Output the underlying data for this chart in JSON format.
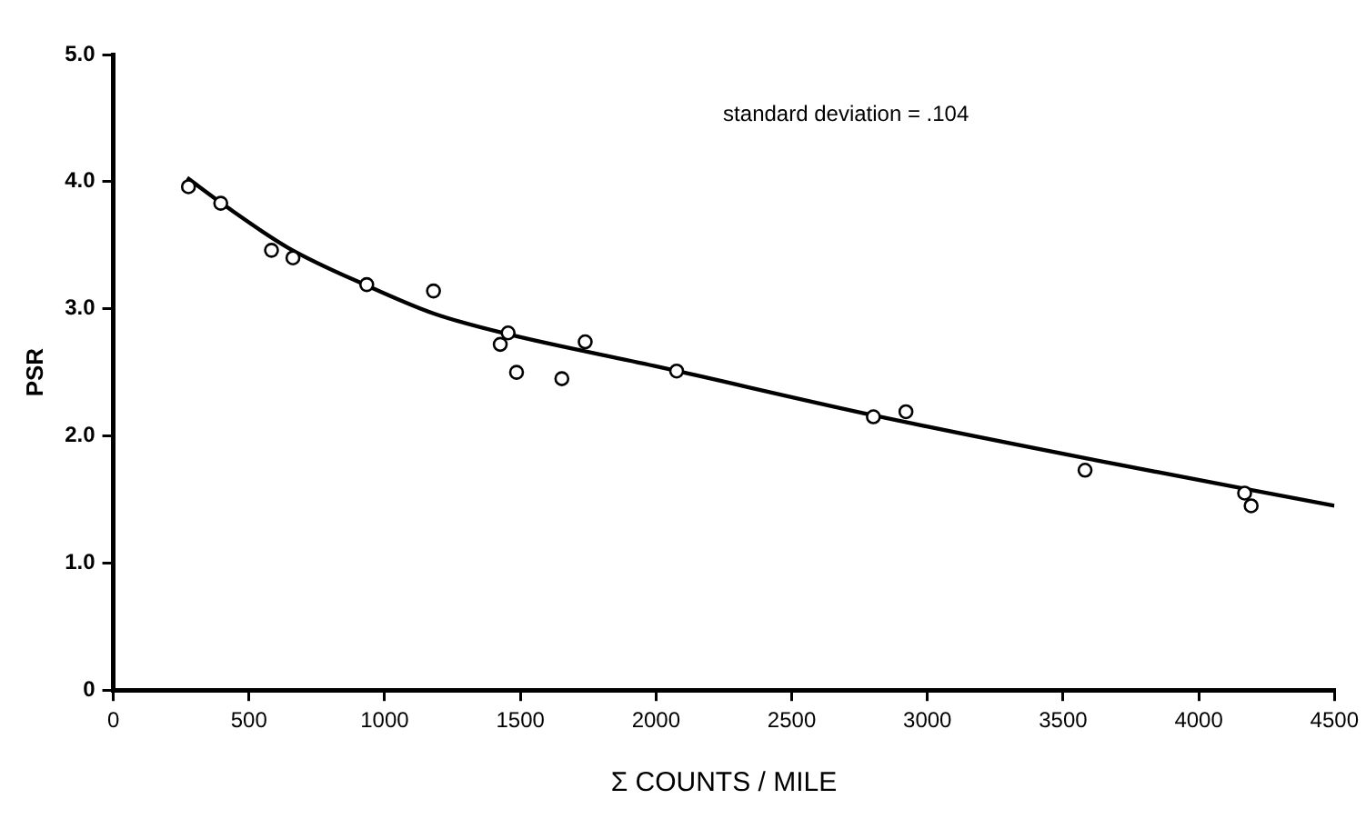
{
  "chart_data": {
    "type": "scatter",
    "xlabel": "Σ COUNTS / MILE",
    "ylabel": "PSR",
    "annotations": [
      "standard deviation = .104"
    ],
    "series": [
      {
        "color": "#000000",
        "marker": "circle",
        "x": [
          277,
          396,
          583,
          662,
          934,
          1180,
          1426,
          1455,
          1486,
          1653,
          1739,
          2076,
          2801,
          2921,
          3581,
          4169,
          4193
        ],
        "values": [
          3.96,
          3.83,
          3.46,
          3.4,
          3.19,
          3.14,
          2.72,
          2.81,
          2.5,
          2.45,
          2.74,
          2.51,
          2.15,
          2.19,
          1.73,
          1.55,
          1.45
        ]
      },
      {
        "type": "line",
        "color": "#000000",
        "marker": "none",
        "line_style": "solid",
        "x": [
          272,
          419,
          644,
          937,
          1184,
          1455,
          1995,
          2805,
          3617,
          4500
        ],
        "values": [
          4.03,
          3.8,
          3.48,
          3.18,
          2.96,
          2.8,
          2.55,
          2.16,
          1.81,
          1.45
        ]
      }
    ],
    "xlim": [
      0,
      4500
    ],
    "xticks": [
      0,
      500,
      1000,
      1500,
      2000,
      2500,
      3000,
      3500,
      4000,
      4500
    ],
    "ylim": [
      0,
      5
    ],
    "yticks": [
      {
        "value": 0,
        "label": "0"
      },
      {
        "value": 1,
        "label": "1.0"
      },
      {
        "value": 2,
        "label": "2.0"
      },
      {
        "value": 3,
        "label": "3.0"
      },
      {
        "value": 4,
        "label": "4.0"
      },
      {
        "value": 5,
        "label": "5.0"
      }
    ],
    "grid": false,
    "legend": false
  }
}
